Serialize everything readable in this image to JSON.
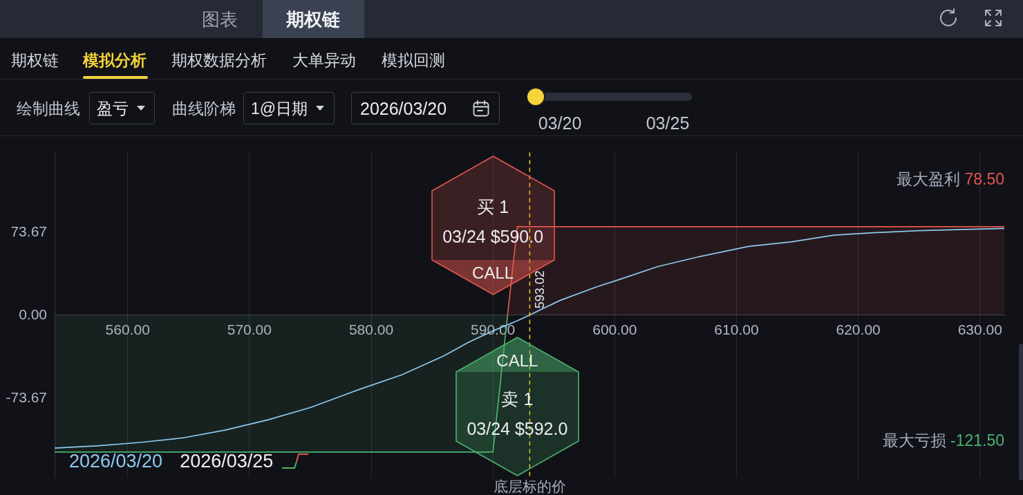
{
  "chart_data": [
    {
      "type": "other",
      "annotations": [
        "图表",
        "期权链",
        "期权链",
        "模拟分析",
        "期权数据分析",
        "大单异动",
        "模拟回测",
        "绘制曲线",
        "盈亏",
        "曲线阶梯",
        "1@日期",
        "2026/03/20",
        "03/20",
        "03/25"
      ]
    },
    {
      "type": "line",
      "series": [
        {
          "name": "2026/03/20",
          "type": "line",
          "color": "#8ec9ef",
          "x": [
            554,
            557.5,
            561,
            564.5,
            568,
            571.5,
            575,
            579,
            582.5,
            586,
            588,
            590,
            592,
            593,
            595.5,
            598.5,
            600.5,
            603.5,
            607,
            611,
            614.5,
            618,
            621,
            625,
            632
          ],
          "values": [
            -118,
            -116,
            -113,
            -109,
            -102,
            -93,
            -82,
            -66,
            -53,
            -36,
            -24,
            -14,
            -5,
            0,
            13,
            25,
            32,
            43,
            52,
            61,
            65,
            71,
            73,
            75,
            77
          ]
        },
        {
          "name": "2026/03/25",
          "type": "area",
          "colors": [
            "#4cb26e",
            "#4cb26e",
            "#4cb26e",
            "#e3574e",
            "#e3574e"
          ],
          "x": [
            554,
            590,
            591.2,
            592,
            632
          ],
          "values": [
            -121.5,
            -121.5,
            0,
            78.5,
            78.5
          ]
        }
      ],
      "xlim": [
        554,
        632
      ],
      "xticks": [
        {
          "value": 560,
          "label": "560.00"
        },
        {
          "value": 570,
          "label": "570.00"
        },
        {
          "value": 580,
          "label": "580.00"
        },
        {
          "value": 590,
          "label": "590.00"
        },
        {
          "value": 600,
          "label": "600.00"
        },
        {
          "value": 610,
          "label": "610.00"
        },
        {
          "value": 620,
          "label": "620.00"
        },
        {
          "value": 630,
          "label": "630.00"
        }
      ],
      "ylim": [
        -144.3,
        144.3
      ],
      "yticks": [
        -73.67,
        {
          "value": 0,
          "label": "0.00"
        },
        73.67
      ],
      "grid": "x",
      "legend": "bottom left",
      "marker": "none",
      "ref_lines": [
        {
          "axis": "x",
          "value": 593.02,
          "label": "593.02",
          "color": "#e8c31f",
          "line_style": "dashed"
        }
      ],
      "annotations": [
        "买 1",
        "03/24 $590.0",
        "CALL",
        "CALL",
        "卖 1",
        "03/24 $592.0",
        "最大盈利 78.50",
        "最大亏损 -121.50",
        "底层标的价"
      ]
    }
  ]
}
